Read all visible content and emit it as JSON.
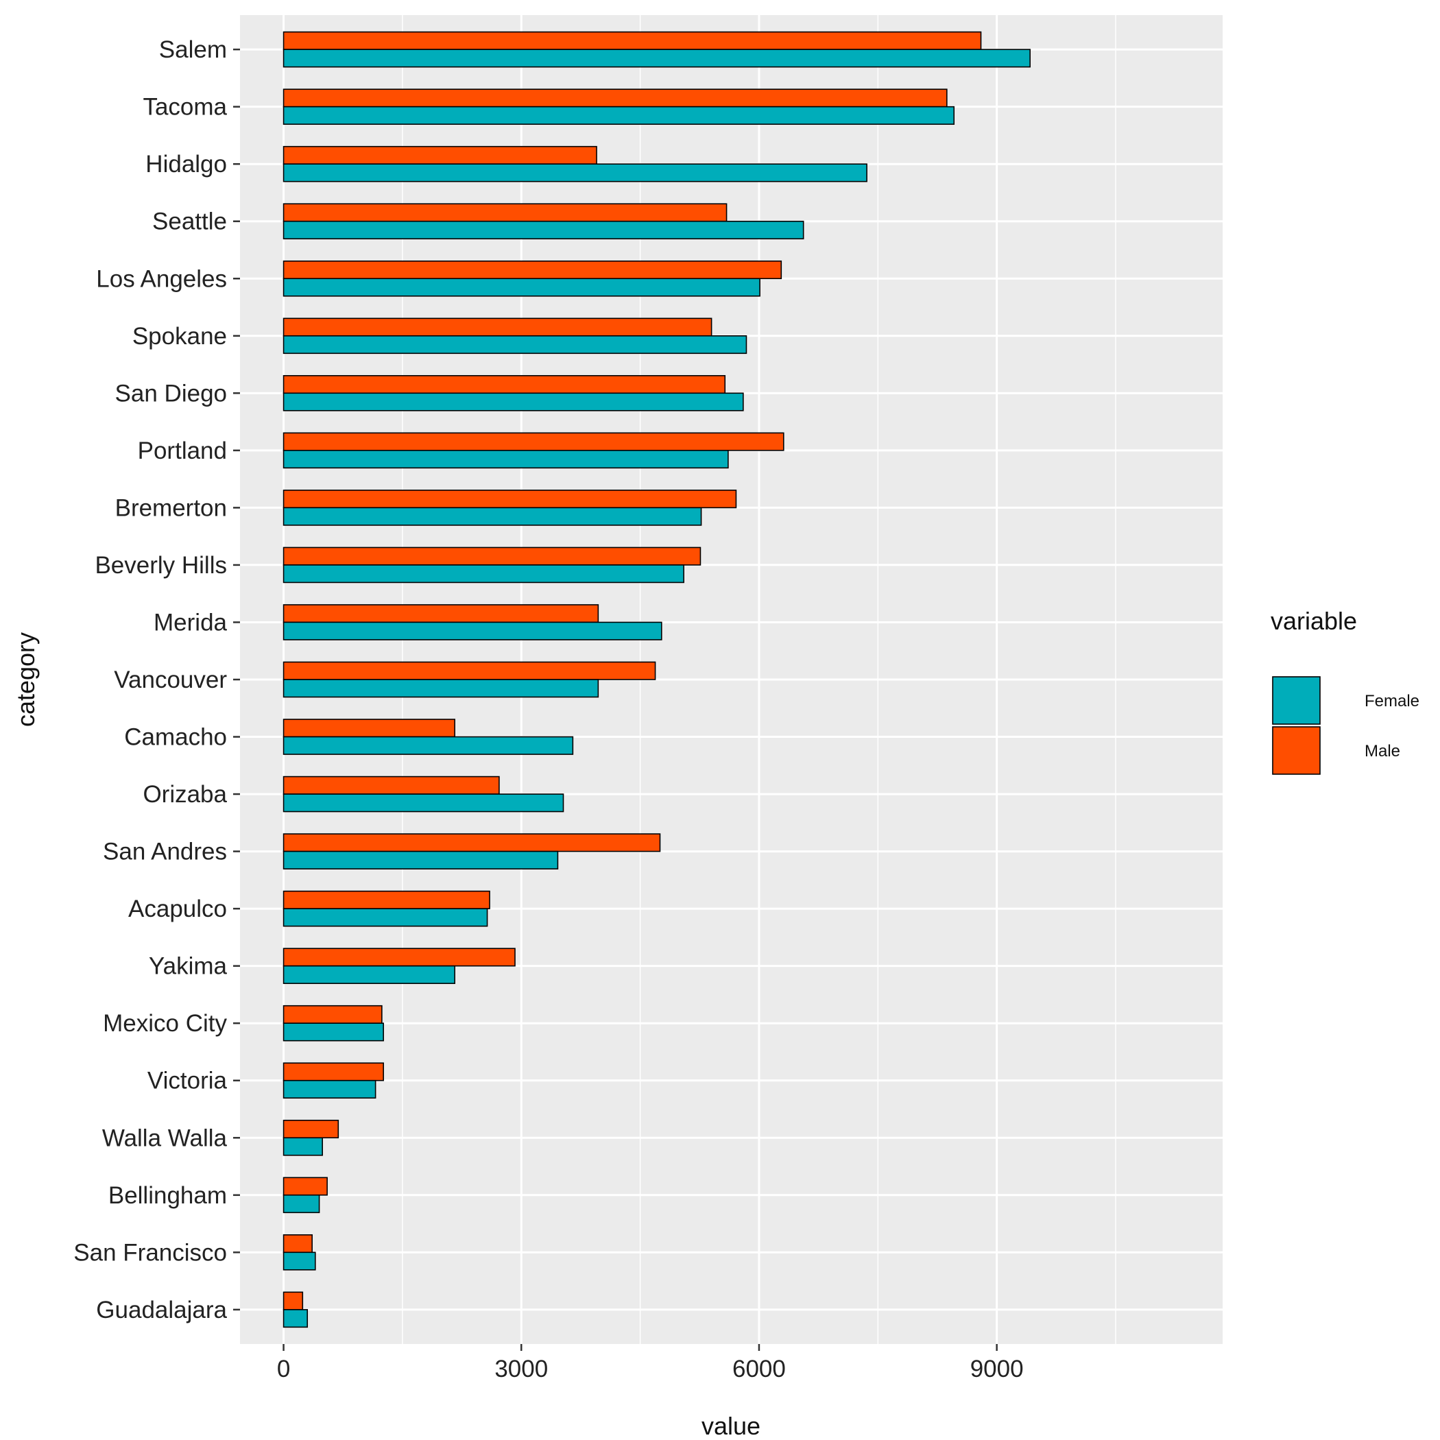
{
  "chart_data": {
    "type": "bar",
    "orientation": "horizontal",
    "xlabel": "value",
    "ylabel": "category",
    "xlim": [
      -550,
      11850
    ],
    "x_ticks": [
      0,
      3000,
      6000,
      9000
    ],
    "x_tick_labels": [
      "0",
      "3000",
      "6000",
      "9000"
    ],
    "grid": true,
    "legend": {
      "title": "variable",
      "position": "right"
    },
    "categories": [
      "Salem",
      "Tacoma",
      "Hidalgo",
      "Seattle",
      "Los Angeles",
      "Spokane",
      "San Diego",
      "Portland",
      "Bremerton",
      "Beverly Hills",
      "Merida",
      "Vancouver",
      "Camacho",
      "Orizaba",
      "San Andres",
      "Acapulco",
      "Yakima",
      "Mexico City",
      "Victoria",
      "Walla Walla",
      "Bellingham",
      "San Francisco",
      "Guadalajara"
    ],
    "series": [
      {
        "name": "Female",
        "color": "#00ADBA",
        "values": [
          9420,
          8460,
          7360,
          6560,
          6010,
          5840,
          5800,
          5610,
          5270,
          5050,
          4770,
          3970,
          3650,
          3530,
          3460,
          2570,
          2160,
          1260,
          1160,
          490,
          450,
          400,
          300
        ]
      },
      {
        "name": "Male",
        "color": "#FF4E00",
        "values": [
          8800,
          8370,
          3950,
          5590,
          6280,
          5400,
          5570,
          6310,
          5710,
          5260,
          3970,
          4690,
          2160,
          2720,
          4750,
          2600,
          2920,
          1240,
          1260,
          690,
          550,
          360,
          240
        ]
      }
    ]
  }
}
